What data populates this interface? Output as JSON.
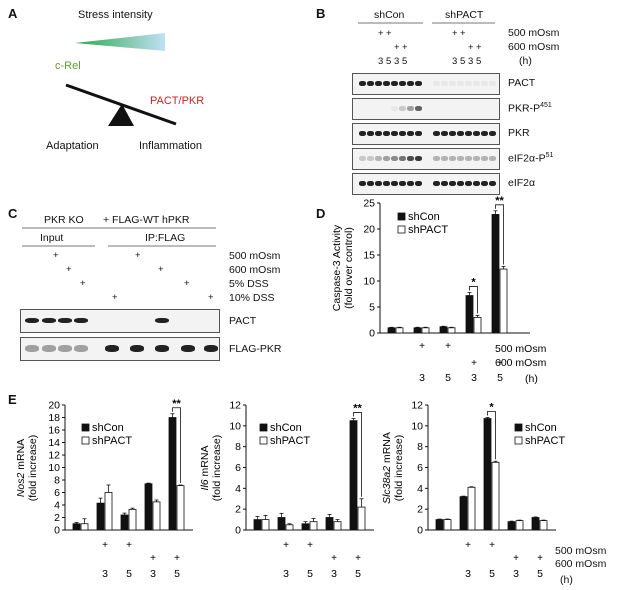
{
  "panels": {
    "A": {
      "label": "A",
      "stress_text": "Stress intensity",
      "left_label": "c-Rel",
      "right_label": "PACT/PKR",
      "left_outcome": "Adaptation",
      "right_outcome": "Inflammation",
      "colors": {
        "crel": "#5aa02c",
        "pactpkr": "#d81e1e",
        "wedge_start": "#2aa84a",
        "wedge_end": "#bfe0f5"
      }
    },
    "B": {
      "label": "B",
      "groups": [
        "shCon",
        "shPACT"
      ],
      "conditions": [
        "500 mOsm",
        "600 mOsm"
      ],
      "times": [
        "3",
        "5",
        "3",
        "5"
      ],
      "time_unit": "(h)",
      "rows": [
        "PACT",
        "PKR-P",
        "PKR",
        "eIF2α-P",
        "eIF2α"
      ],
      "rows_sup": [
        "",
        "451",
        "",
        "51",
        ""
      ]
    },
    "C": {
      "label": "C",
      "header_left": "PKR KO",
      "header_right": "+ FLAG-WT hPKR",
      "sub_left": "Input",
      "sub_right": "IP:FLAG",
      "conditions": [
        "500 mOsm",
        "600 mOsm",
        "5% DSS",
        "10% DSS"
      ],
      "rows": [
        "PACT",
        "FLAG-PKR"
      ]
    },
    "D": {
      "label": "D",
      "plus": "+",
      "xlabels": [
        "3",
        "5",
        "3",
        "5"
      ],
      "conditions": [
        "500 mOsm",
        "600 mOsm"
      ],
      "time_unit": "(h)"
    },
    "E": {
      "label": "E",
      "conditions": [
        "500 mOsm",
        "600 mOsm"
      ],
      "time_unit": "(h)",
      "plus": "+"
    }
  },
  "chart_data": [
    {
      "type": "bar",
      "id": "D",
      "ylabel": "Caspase-3 Activity",
      "ylabel2": "(fold over control)",
      "ylim": [
        0,
        25
      ],
      "yticks": [
        0,
        5,
        10,
        15,
        20,
        25
      ],
      "categories": [
        "control",
        "500 mOsm 3h",
        "500 mOsm 5h",
        "600 mOsm 3h",
        "600 mOsm 5h"
      ],
      "series": [
        {
          "name": "shCon",
          "values": [
            1.0,
            1.0,
            1.2,
            7.2,
            22.8
          ],
          "errors": [
            0.1,
            0.1,
            0.1,
            0.6,
            0.7
          ]
        },
        {
          "name": "shPACT",
          "values": [
            1.0,
            1.0,
            1.0,
            3.0,
            12.3
          ],
          "errors": [
            0.1,
            0.1,
            0.1,
            0.4,
            0.5
          ]
        }
      ],
      "significance": [
        "",
        "",
        "",
        "*",
        "**"
      ]
    },
    {
      "type": "bar",
      "id": "E1",
      "ylabel_italic": "Nos2",
      "ylabel": " mRNA",
      "ylabel2": "(fold increase)",
      "ylim": [
        0,
        20
      ],
      "yticks": [
        0,
        2,
        4,
        6,
        8,
        10,
        12,
        14,
        16,
        18,
        20
      ],
      "categories": [
        "control",
        "500 mOsm 3h",
        "500 mOsm 5h",
        "600 mOsm 3h",
        "600 mOsm 5h"
      ],
      "series": [
        {
          "name": "shCon",
          "values": [
            1.0,
            4.3,
            2.4,
            7.4,
            18.0
          ],
          "errors": [
            0.2,
            0.8,
            0.3,
            0.1,
            0.6
          ]
        },
        {
          "name": "shPACT",
          "values": [
            1.0,
            6.0,
            3.3,
            4.5,
            7.1
          ],
          "errors": [
            0.8,
            1.2,
            0.2,
            0.3,
            0.1
          ]
        }
      ],
      "significance": [
        "",
        "",
        "",
        "",
        "**"
      ]
    },
    {
      "type": "bar",
      "id": "E2",
      "ylabel_italic": "Il6",
      "ylabel": " mRNA",
      "ylabel2": "(fold increase)",
      "ylim": [
        0,
        12
      ],
      "yticks": [
        0,
        2,
        4,
        6,
        8,
        10,
        12
      ],
      "categories": [
        "control",
        "500 mOsm 3h",
        "500 mOsm 5h",
        "600 mOsm 3h",
        "600 mOsm 5h"
      ],
      "series": [
        {
          "name": "shCon",
          "values": [
            1.0,
            1.2,
            0.6,
            1.2,
            10.5
          ],
          "errors": [
            0.3,
            0.4,
            0.2,
            0.3,
            0.2
          ]
        },
        {
          "name": "shPACT",
          "values": [
            1.0,
            0.5,
            0.8,
            0.8,
            2.2
          ],
          "errors": [
            0.4,
            0.1,
            0.3,
            0.2,
            0.8
          ]
        }
      ],
      "significance": [
        "",
        "",
        "",
        "",
        "**"
      ]
    },
    {
      "type": "bar",
      "id": "E3",
      "ylabel_italic": "Slc38a2",
      "ylabel": " mRNA",
      "ylabel2": "(fold increase)",
      "ylim": [
        0,
        12
      ],
      "yticks": [
        0,
        2,
        4,
        6,
        8,
        10,
        12
      ],
      "categories": [
        "control",
        "500 mOsm 3h",
        "500 mOsm 5h",
        "600 mOsm 3h",
        "600 mOsm 5h"
      ],
      "series": [
        {
          "name": "shCon",
          "values": [
            1.0,
            3.2,
            10.7,
            0.8,
            1.2
          ],
          "errors": [
            0.05,
            0.05,
            0.1,
            0.05,
            0.05
          ]
        },
        {
          "name": "shPACT",
          "values": [
            1.0,
            4.1,
            6.5,
            0.9,
            0.9
          ],
          "errors": [
            0.05,
            0.05,
            0.1,
            0.05,
            0.05
          ]
        }
      ],
      "significance": [
        "",
        "",
        "*",
        "",
        ""
      ]
    }
  ]
}
